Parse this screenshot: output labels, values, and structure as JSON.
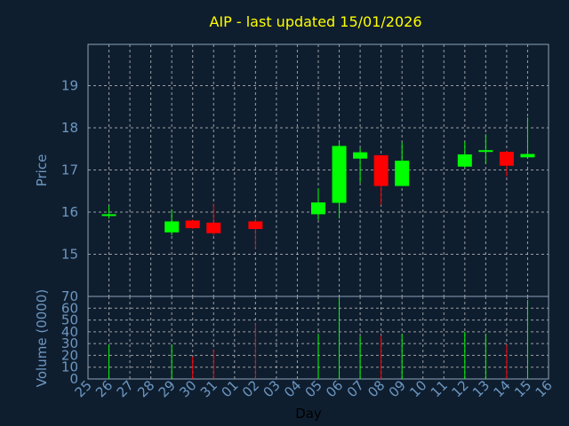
{
  "chart_data": {
    "type": "candlestick",
    "title": "AIP - last updated 15/01/2026",
    "xlabel": "Day",
    "ylabel_price": "Price",
    "ylabel_volume": "Volume (0000)",
    "x_tick_labels": [
      "25",
      "26",
      "27",
      "28",
      "29",
      "30",
      "31",
      "01",
      "02",
      "03",
      "04",
      "05",
      "06",
      "07",
      "08",
      "09",
      "10",
      "11",
      "12",
      "13",
      "14",
      "15",
      "16"
    ],
    "price_ticks": [
      15,
      16,
      17,
      18,
      19
    ],
    "price_ylim": [
      14.0,
      19.98
    ],
    "volume_ticks": [
      0,
      10,
      20,
      30,
      40,
      50,
      60,
      70
    ],
    "volume_ylim": [
      0,
      70
    ],
    "grid": true,
    "colors": {
      "up": "#00ff00",
      "down": "#ff0000",
      "title": "#ffff00",
      "axis_text": "#6c97c2",
      "background": "#0f1e2f"
    },
    "candles": [
      {
        "day": "26",
        "open": 15.95,
        "high": 16.15,
        "low": 15.85,
        "close": 15.95,
        "volume": 29
      },
      {
        "day": "29",
        "open": 15.52,
        "high": 16.05,
        "low": 15.45,
        "close": 15.78,
        "volume": 29
      },
      {
        "day": "30",
        "open": 15.8,
        "high": 15.82,
        "low": 15.6,
        "close": 15.62,
        "volume": 19
      },
      {
        "day": "31",
        "open": 15.75,
        "high": 16.2,
        "low": 15.45,
        "close": 15.5,
        "volume": 25
      },
      {
        "day": "02",
        "open": 15.78,
        "high": 15.85,
        "low": 15.12,
        "close": 15.6,
        "volume": 47
      },
      {
        "day": "05",
        "open": 15.95,
        "high": 16.57,
        "low": 15.82,
        "close": 16.23,
        "volume": 38
      },
      {
        "day": "06",
        "open": 16.22,
        "high": 17.65,
        "low": 15.85,
        "close": 17.57,
        "volume": 68
      },
      {
        "day": "07",
        "open": 17.27,
        "high": 17.52,
        "low": 16.7,
        "close": 17.42,
        "volume": 36
      },
      {
        "day": "08",
        "open": 17.35,
        "high": 17.35,
        "low": 16.17,
        "close": 16.62,
        "volume": 37
      },
      {
        "day": "09",
        "open": 16.62,
        "high": 17.65,
        "low": 16.62,
        "close": 17.22,
        "volume": 38
      },
      {
        "day": "12",
        "open": 17.08,
        "high": 17.67,
        "low": 17.05,
        "close": 17.37,
        "volume": 40
      },
      {
        "day": "13",
        "open": 17.43,
        "high": 17.85,
        "low": 17.15,
        "close": 17.47,
        "volume": 38
      },
      {
        "day": "14",
        "open": 17.43,
        "high": 17.45,
        "low": 16.85,
        "close": 17.1,
        "volume": 29
      },
      {
        "day": "15",
        "open": 17.3,
        "high": 18.25,
        "low": 17.28,
        "close": 17.38,
        "volume": 67
      }
    ]
  }
}
